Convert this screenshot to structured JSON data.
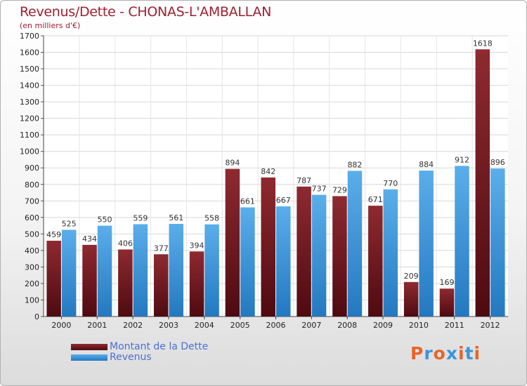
{
  "chart_data": {
    "type": "bar",
    "title": "Revenus/Dette - CHONAS-L'AMBALLAN",
    "subtitle": "(en milliers d'€)",
    "categories": [
      "2000",
      "2001",
      "2002",
      "2003",
      "2004",
      "2005",
      "2006",
      "2007",
      "2008",
      "2009",
      "2010",
      "2011",
      "2012"
    ],
    "series": [
      {
        "name": "Montant de la Dette",
        "color": "#7a1c22",
        "values": [
          459,
          434,
          406,
          377,
          394,
          894,
          842,
          787,
          729,
          671,
          209,
          169,
          1618
        ]
      },
      {
        "name": "Revenus",
        "color": "#3a96dc",
        "values": [
          525,
          550,
          559,
          561,
          558,
          661,
          667,
          737,
          882,
          770,
          884,
          912,
          896
        ]
      }
    ],
    "yticks": [
      0,
      100,
      200,
      300,
      400,
      500,
      600,
      700,
      800,
      900,
      1000,
      1100,
      1200,
      1300,
      1400,
      1500,
      1600,
      1700
    ],
    "ylim": [
      0,
      1700
    ],
    "grid": true,
    "legend_position": "bottom-left"
  },
  "logo": {
    "letters": [
      "P",
      "r",
      "o",
      "x",
      "i",
      "t",
      "i"
    ],
    "colors": [
      "#e8642a",
      "#3a96dc",
      "#e8642a",
      "#3a96dc",
      "#e8642a",
      "#3a96dc",
      "#e8642a"
    ]
  }
}
